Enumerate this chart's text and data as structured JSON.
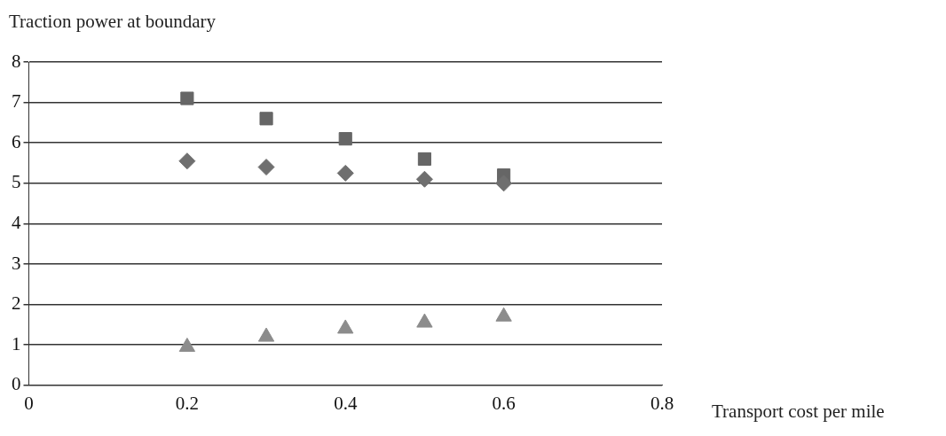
{
  "chart_data": {
    "type": "scatter",
    "xlabel": "Transport cost per mile",
    "ylabel": "Traction power at boundary",
    "x": [
      0.2,
      0.3,
      0.4,
      0.5,
      0.6
    ],
    "series": [
      {
        "color": "#6f6f6f",
        "marker": "diamond",
        "values": [
          5.55,
          5.4,
          5.25,
          5.1,
          5.0
        ]
      },
      {
        "color": "#666666",
        "marker": "square",
        "values": [
          7.1,
          6.6,
          6.1,
          5.6,
          5.2
        ]
      },
      {
        "color": "#8c8c8c",
        "marker": "triangle",
        "values": [
          0.95,
          1.2,
          1.4,
          1.55,
          1.7
        ]
      }
    ],
    "xlim": [
      0,
      0.8
    ],
    "xticks": [
      0,
      0.2,
      0.4,
      0.6,
      0.8
    ],
    "ylim": [
      0,
      8
    ],
    "yticks": [
      0,
      1,
      2,
      3,
      4,
      5,
      6,
      7,
      8
    ],
    "grid": "y",
    "legend": false
  }
}
